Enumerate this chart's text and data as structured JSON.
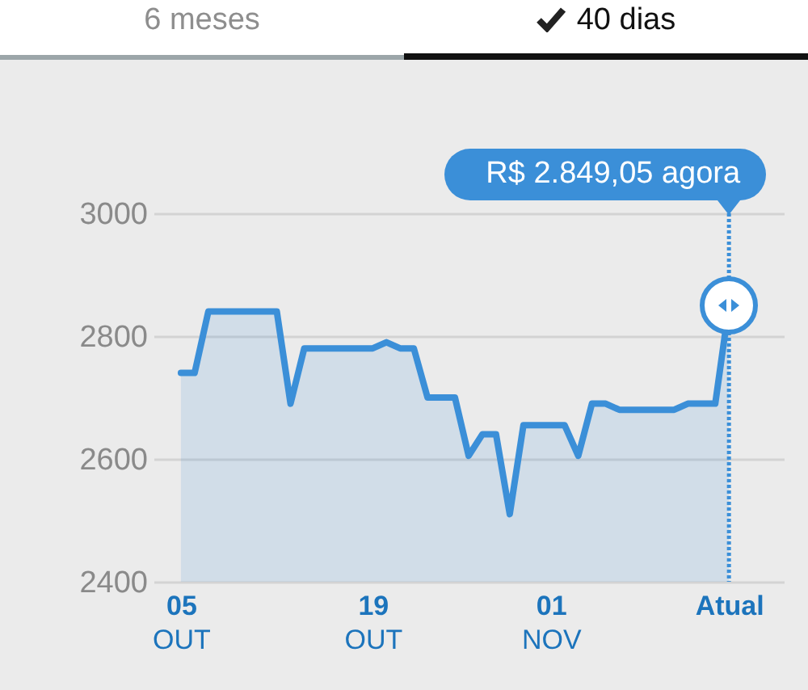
{
  "chart_data": {
    "type": "area",
    "x": [
      "--10-05",
      "--10-06",
      "--10-07",
      "--10-12",
      "--10-13",
      "--10-14",
      "--10-19",
      "--10-20",
      "--10-21",
      "--10-22",
      "--10-23",
      "--10-25",
      "--10-26",
      "--10-27",
      "--10-28",
      "--10-29",
      "--10-30",
      "--11-02",
      "--11-03",
      "--11-04",
      "--11-05",
      "--11-06",
      "--11-10",
      "--11-11",
      "--11-13",
      "--11-14"
    ],
    "series": [
      {
        "color": "#3b8fd8",
        "values": [
          2740,
          2740,
          2840,
          2840,
          2690,
          2780,
          2780,
          2790,
          2780,
          2780,
          2700,
          2700,
          2605,
          2640,
          2640,
          2510,
          2655,
          2655,
          2605,
          2690,
          2690,
          2680,
          2680,
          2690,
          2690,
          2849.05
        ]
      }
    ],
    "xlim": [
      "--10-03",
      "--11-18"
    ],
    "xticks": [
      {
        "value": "--10-05",
        "label": "05\nOUT"
      },
      {
        "value": "--10-19",
        "label": "19\nOUT"
      },
      {
        "value": "--11-01",
        "label": "01\nNOV"
      },
      {
        "value": "--11-14",
        "label": "Atual"
      }
    ],
    "ylim": [
      2400,
      3000
    ],
    "yticks": [
      2400,
      2600,
      2800,
      3000
    ],
    "grid": "y",
    "ref_lines": [
      {
        "axis": "x",
        "value": "--11-14",
        "label": "R$ 2.849,05 agora",
        "line_style": "dotted",
        "color": "#3b8fd8"
      }
    ],
    "annotations": [
      "6 meses",
      "40 dias"
    ]
  }
}
